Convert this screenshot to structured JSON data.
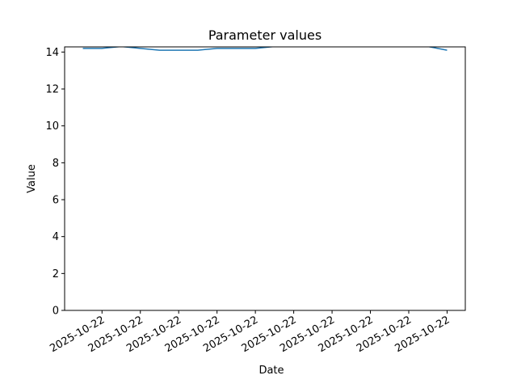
{
  "chart_data": {
    "type": "line",
    "title": "Parameter values",
    "x_label": "Date",
    "y_label": "Value",
    "x": [
      0,
      1,
      2,
      3,
      4,
      5,
      6,
      7,
      8,
      9,
      10,
      11,
      12,
      13,
      14,
      15,
      16,
      17,
      18,
      19
    ],
    "series": [
      {
        "name": "Value",
        "color": "#1f77b4",
        "values": [
          14.2,
          14.2,
          14.3,
          14.2,
          14.1,
          14.1,
          14.1,
          14.2,
          14.2,
          14.2,
          14.3,
          14.3,
          14.3,
          14.3,
          14.3,
          14.3,
          14.3,
          14.3,
          14.3,
          14.1
        ]
      }
    ],
    "xlim": [
      -0.95,
      19.95
    ],
    "xticks": [
      {
        "value": 1,
        "label": "2025-10-22"
      },
      {
        "value": 3,
        "label": "2025-10-22"
      },
      {
        "value": 5,
        "label": "2025-10-22"
      },
      {
        "value": 7,
        "label": "2025-10-22"
      },
      {
        "value": 9,
        "label": "2025-10-22"
      },
      {
        "value": 11,
        "label": "2025-10-22"
      },
      {
        "value": 13,
        "label": "2025-10-22"
      },
      {
        "value": 15,
        "label": "2025-10-22"
      },
      {
        "value": 17,
        "label": "2025-10-22"
      },
      {
        "value": 19,
        "label": "2025-10-22"
      }
    ],
    "ylim": [
      0,
      14.28
    ],
    "yticks": [
      0,
      2,
      4,
      6,
      8,
      10,
      12,
      14
    ],
    "grid": false
  }
}
